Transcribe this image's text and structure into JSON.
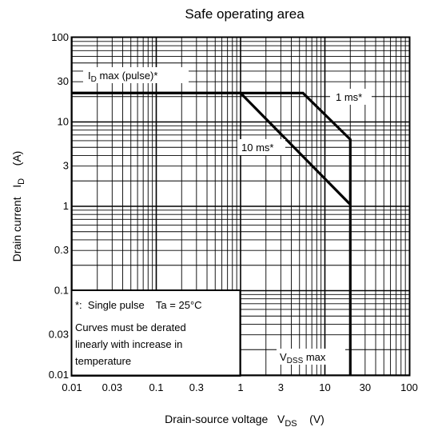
{
  "chart_data": {
    "type": "line",
    "title": "Safe operating area",
    "xlabel": {
      "text": "Drain-source voltage",
      "symbol": "V",
      "subscript": "DS",
      "unit": "(V)"
    },
    "ylabel": {
      "text": "Drain current",
      "symbol": "I",
      "subscript": "D",
      "unit": "(A)"
    },
    "x_scale": "log",
    "y_scale": "log",
    "xlim": [
      0.01,
      100
    ],
    "ylim": [
      0.01,
      100
    ],
    "x_ticks": [
      0.01,
      0.03,
      0.1,
      0.3,
      1,
      3,
      10,
      30,
      100
    ],
    "x_tick_labels": [
      "0.01",
      "0.03",
      "0.1",
      "0.3",
      "1",
      "3",
      "10",
      "30",
      "100"
    ],
    "y_ticks": [
      0.01,
      0.03,
      0.1,
      0.3,
      1,
      3,
      10,
      30,
      100
    ],
    "y_tick_labels": [
      "0.01",
      "0.03",
      "0.1",
      "0.3",
      "1",
      "3",
      "10",
      "30",
      "100"
    ],
    "grid": true,
    "series": [
      {
        "name": "1 ms*",
        "x": [
          0.01,
          5.5,
          20,
          20
        ],
        "y": [
          22,
          22,
          6.2,
          0.01
        ]
      },
      {
        "name": "10 ms*",
        "x": [
          0.01,
          1.0,
          20
        ],
        "y": [
          22,
          22,
          1.05
        ]
      }
    ],
    "annotations": {
      "id_max": {
        "symbol": "I",
        "subscript": "D",
        "text": " max (pulse)*"
      },
      "vdss_max": {
        "symbol": "V",
        "subscript": "DSS",
        "text": " max"
      },
      "note_lines": [
        "*:  Single pulse    Ta = 25°C",
        "Curves must be derated",
        "linearly with increase in",
        "temperature"
      ]
    }
  }
}
